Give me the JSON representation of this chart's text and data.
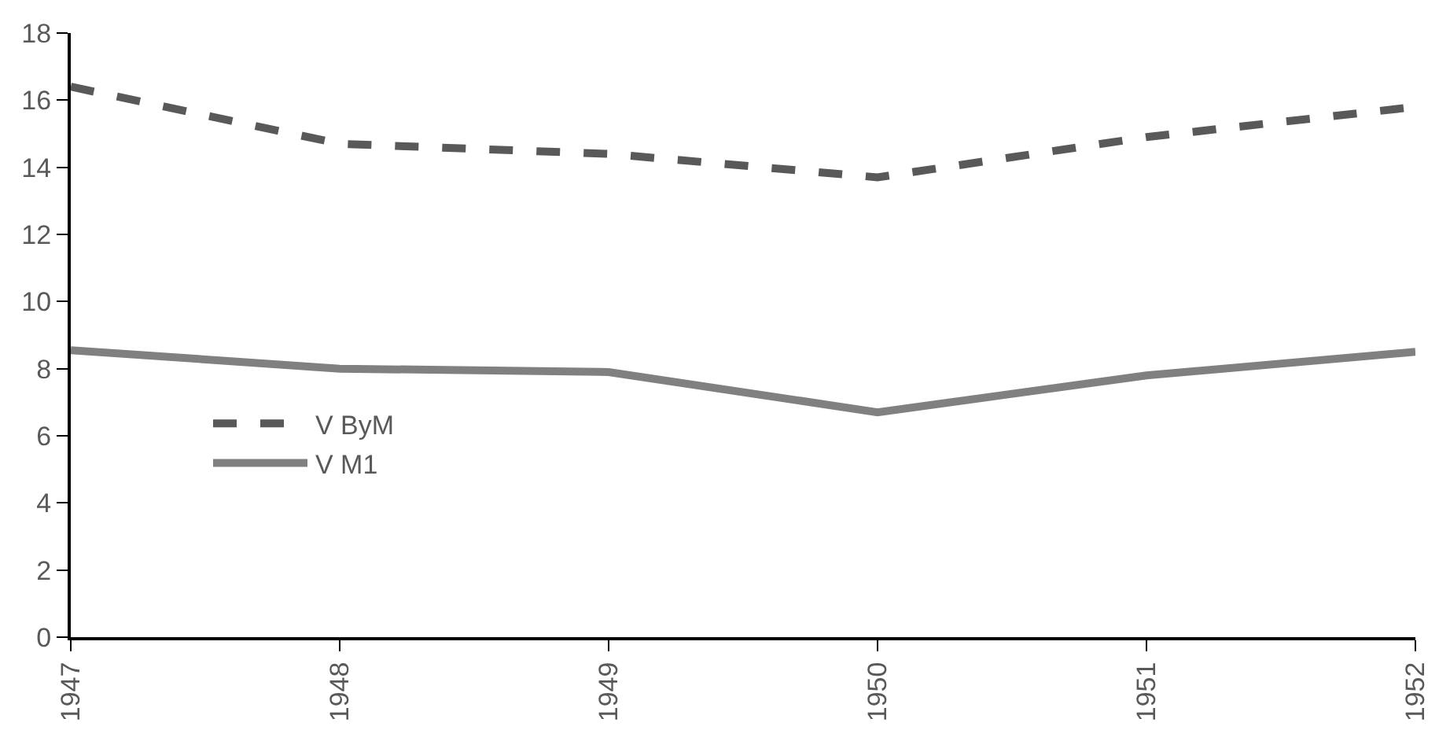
{
  "chart_data": {
    "type": "line",
    "x": [
      1947,
      1948,
      1949,
      1950,
      1951,
      1952
    ],
    "series": [
      {
        "name": "V ByM",
        "color": "#595959",
        "line_style": "dashed",
        "values": [
          16.4,
          14.7,
          14.4,
          13.7,
          14.9,
          15.8
        ]
      },
      {
        "name": "V M1",
        "color": "#808080",
        "line_style": "solid",
        "values": [
          8.55,
          8.0,
          7.9,
          6.7,
          7.8,
          8.5
        ]
      }
    ],
    "xlim": [
      1947,
      1952
    ],
    "xticks": [
      1947,
      1948,
      1949,
      1950,
      1951,
      1952
    ],
    "ylim": [
      0,
      18
    ],
    "yticks": [
      0,
      2,
      4,
      6,
      8,
      10,
      12,
      14,
      16,
      18
    ],
    "grid": false,
    "legend": "left",
    "marker": "none"
  }
}
